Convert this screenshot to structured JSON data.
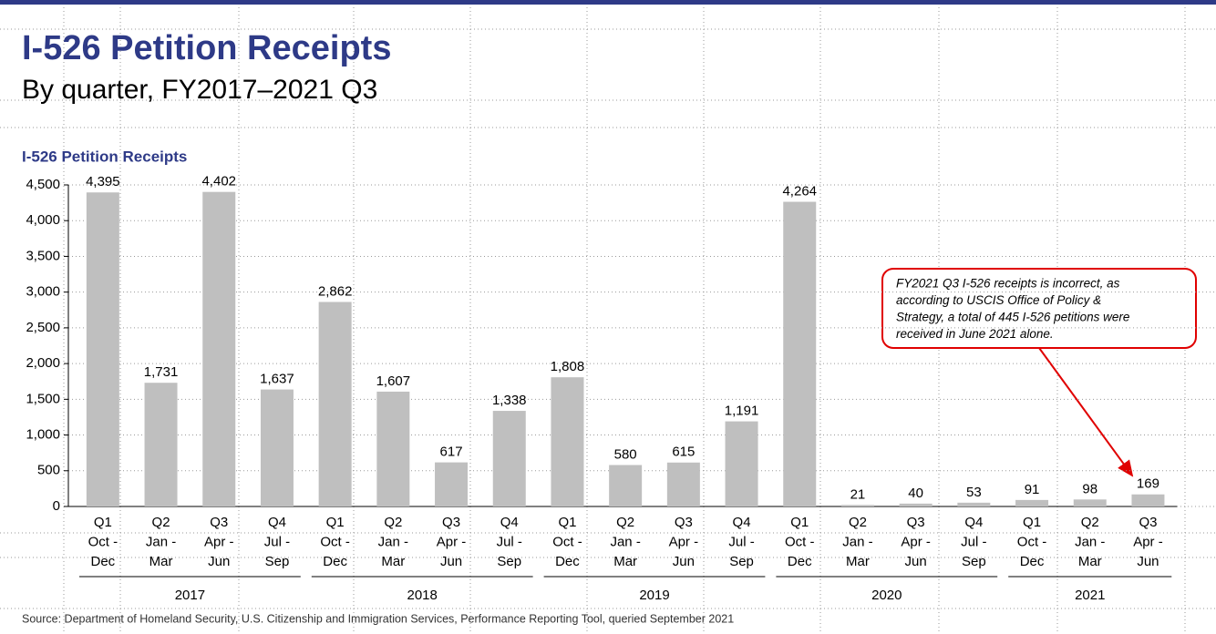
{
  "chart_data": {
    "type": "bar",
    "title": "I-526 Petition Receipts",
    "subtitle": "By quarter, FY2017–2021 Q3",
    "y_axis_title": "I-526 Petition Receipts",
    "categories": [
      [
        "Q1",
        "Oct -",
        "Dec"
      ],
      [
        "Q2",
        "Jan -",
        "Mar"
      ],
      [
        "Q3",
        "Apr -",
        "Jun"
      ],
      [
        "Q4",
        "Jul -",
        "Sep"
      ],
      [
        "Q1",
        "Oct -",
        "Dec"
      ],
      [
        "Q2",
        "Jan -",
        "Mar"
      ],
      [
        "Q3",
        "Apr -",
        "Jun"
      ],
      [
        "Q4",
        "Jul -",
        "Sep"
      ],
      [
        "Q1",
        "Oct -",
        "Dec"
      ],
      [
        "Q2",
        "Jan -",
        "Mar"
      ],
      [
        "Q3",
        "Apr -",
        "Jun"
      ],
      [
        "Q4",
        "Jul -",
        "Sep"
      ],
      [
        "Q1",
        "Oct -",
        "Dec"
      ],
      [
        "Q2",
        "Jan -",
        "Mar"
      ],
      [
        "Q3",
        "Apr -",
        "Jun"
      ],
      [
        "Q4",
        "Jul -",
        "Sep"
      ],
      [
        "Q1",
        "Oct -",
        "Dec"
      ],
      [
        "Q2",
        "Jan -",
        "Mar"
      ],
      [
        "Q3",
        "Apr -",
        "Jun"
      ]
    ],
    "groups": [
      "2017",
      "2018",
      "2019",
      "2020",
      "2021"
    ],
    "values": [
      4395,
      1731,
      4402,
      1637,
      2862,
      1607,
      617,
      1338,
      1808,
      580,
      615,
      1191,
      4264,
      21,
      40,
      53,
      91,
      98,
      169
    ],
    "value_labels": [
      "4,395",
      "1,731",
      "4,402",
      "1,637",
      "2,862",
      "1,607",
      "617",
      "1,338",
      "1,808",
      "580",
      "615",
      "1,191",
      "4,264",
      "21",
      "40",
      "53",
      "91",
      "98",
      "169"
    ],
    "color": "#bfbfbf",
    "ylim": [
      0,
      4500
    ],
    "yticks": [
      0,
      500,
      {
        "value": 1000,
        "label": "1,000"
      },
      {
        "value": 1500,
        "label": "1,500"
      },
      {
        "value": 2000,
        "label": "2,000"
      },
      {
        "value": 2500,
        "label": "2,500"
      },
      {
        "value": 3000,
        "label": "3,000"
      },
      {
        "value": 3500,
        "label": "3,500"
      },
      {
        "value": 4000,
        "label": "4,000"
      },
      {
        "value": 4500,
        "label": "4,500"
      }
    ],
    "grid": true,
    "annotation": [
      "FY2021 Q3 I-526 receipts is incorrect, as",
      "according to USCIS Office of Policy &",
      "Strategy, a total of 445 I-526 petitions were",
      "received in June 2021 alone."
    ],
    "source": "Source: Department of Homeland Security, U.S. Citizenship and Immigration Services, Performance Reporting Tool, queried September 2021"
  }
}
